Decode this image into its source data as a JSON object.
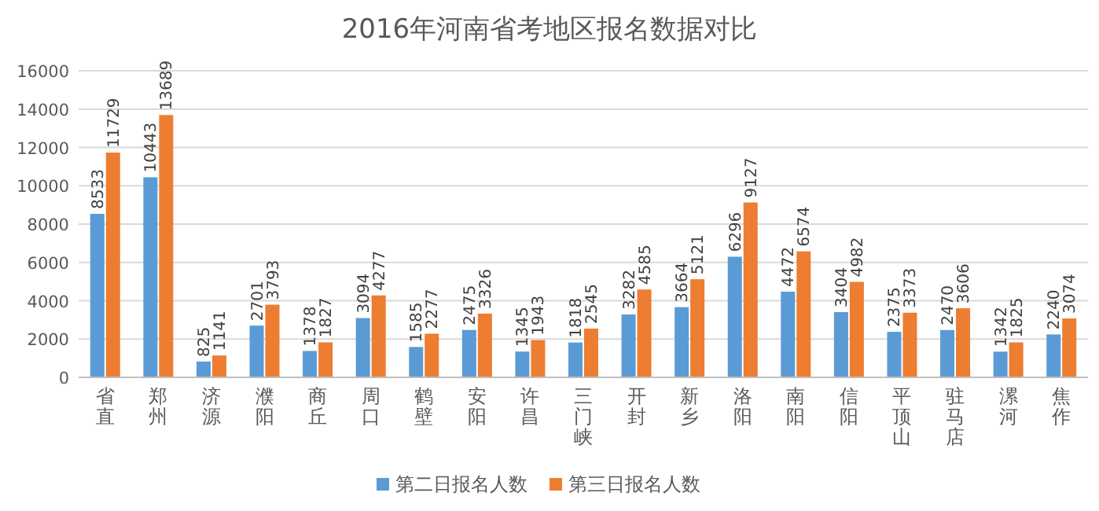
{
  "chart_data": {
    "type": "bar",
    "title": "2016年河南省考地区报名数据对比",
    "categories": [
      "省直",
      "郑州",
      "济源",
      "濮阳",
      "商丘",
      "周口",
      "鹤壁",
      "安阳",
      "许昌",
      "三门峡",
      "开封",
      "新乡",
      "洛阳",
      "南阳",
      "信阳",
      "平顶山",
      "驻马店",
      "漯河",
      "焦作"
    ],
    "series": [
      {
        "name": "第二日报名人数",
        "color": "#5b9bd5",
        "values": [
          8533,
          10443,
          825,
          2701,
          1378,
          3094,
          1585,
          2475,
          1345,
          1818,
          3282,
          3664,
          6296,
          4472,
          3404,
          2375,
          2470,
          1342,
          2240
        ]
      },
      {
        "name": "第三日报名人数",
        "color": "#ed7d31",
        "values": [
          11729,
          13689,
          1141,
          3793,
          1827,
          4277,
          2277,
          3326,
          1943,
          2545,
          4585,
          5121,
          9127,
          6574,
          4982,
          3373,
          3606,
          1825,
          3074
        ]
      }
    ],
    "ylim": [
      0,
      16000
    ],
    "yticks": [
      0,
      2000,
      4000,
      6000,
      8000,
      10000,
      12000,
      14000,
      16000
    ],
    "grid": "y",
    "legend": "bottom",
    "data_labels": true
  }
}
